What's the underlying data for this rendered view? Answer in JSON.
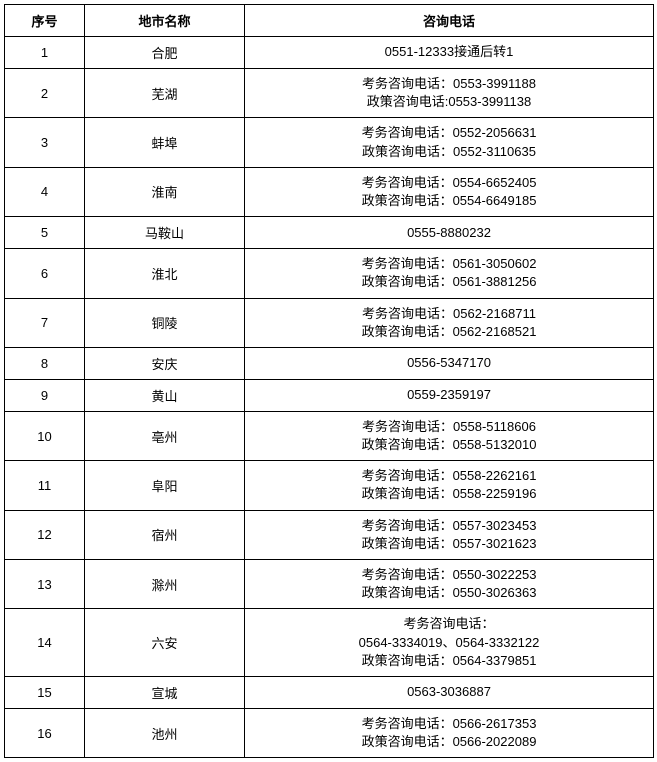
{
  "table": {
    "columns": [
      "序号",
      "地市名称",
      "咨询电话"
    ],
    "rows": [
      {
        "seq": "1",
        "city": "合肥",
        "phones": [
          "0551-12333接通后转1"
        ]
      },
      {
        "seq": "2",
        "city": "芜湖",
        "phones": [
          "考务咨询电话：0553-3991188",
          "政策咨询电话:0553-3991138"
        ]
      },
      {
        "seq": "3",
        "city": "蚌埠",
        "phones": [
          "考务咨询电话：0552-2056631",
          "政策咨询电话：0552-3110635"
        ]
      },
      {
        "seq": "4",
        "city": "淮南",
        "phones": [
          "考务咨询电话：0554-6652405",
          "政策咨询电话：0554-6649185"
        ]
      },
      {
        "seq": "5",
        "city": "马鞍山",
        "phones": [
          "0555-8880232"
        ]
      },
      {
        "seq": "6",
        "city": "淮北",
        "phones": [
          "考务咨询电话：0561-3050602",
          "政策咨询电话：0561-3881256"
        ]
      },
      {
        "seq": "7",
        "city": "铜陵",
        "phones": [
          "考务咨询电话：0562-2168711",
          "政策咨询电话：0562-2168521"
        ]
      },
      {
        "seq": "8",
        "city": "安庆",
        "phones": [
          "0556-5347170"
        ]
      },
      {
        "seq": "9",
        "city": "黄山",
        "phones": [
          "0559-2359197"
        ]
      },
      {
        "seq": "10",
        "city": "亳州",
        "phones": [
          "考务咨询电话：0558-5118606",
          "政策咨询电话：0558-5132010"
        ]
      },
      {
        "seq": "11",
        "city": "阜阳",
        "phones": [
          "考务咨询电话：0558-2262161",
          "政策咨询电话：0558-2259196"
        ]
      },
      {
        "seq": "12",
        "city": "宿州",
        "phones": [
          "考务咨询电话：0557-3023453",
          "政策咨询电话：0557-3021623"
        ]
      },
      {
        "seq": "13",
        "city": "滁州",
        "phones": [
          "考务咨询电话：0550-3022253",
          "政策咨询电话：0550-3026363"
        ]
      },
      {
        "seq": "14",
        "city": "六安",
        "phones": [
          "考务咨询电话：",
          "0564-3334019、0564-3332122",
          "政策咨询电话：0564-3379851"
        ]
      },
      {
        "seq": "15",
        "city": "宣城",
        "phones": [
          "0563-3036887"
        ]
      },
      {
        "seq": "16",
        "city": "池州",
        "phones": [
          "考务咨询电话：0566-2617353",
          "政策咨询电话：0566-2022089"
        ]
      }
    ]
  }
}
